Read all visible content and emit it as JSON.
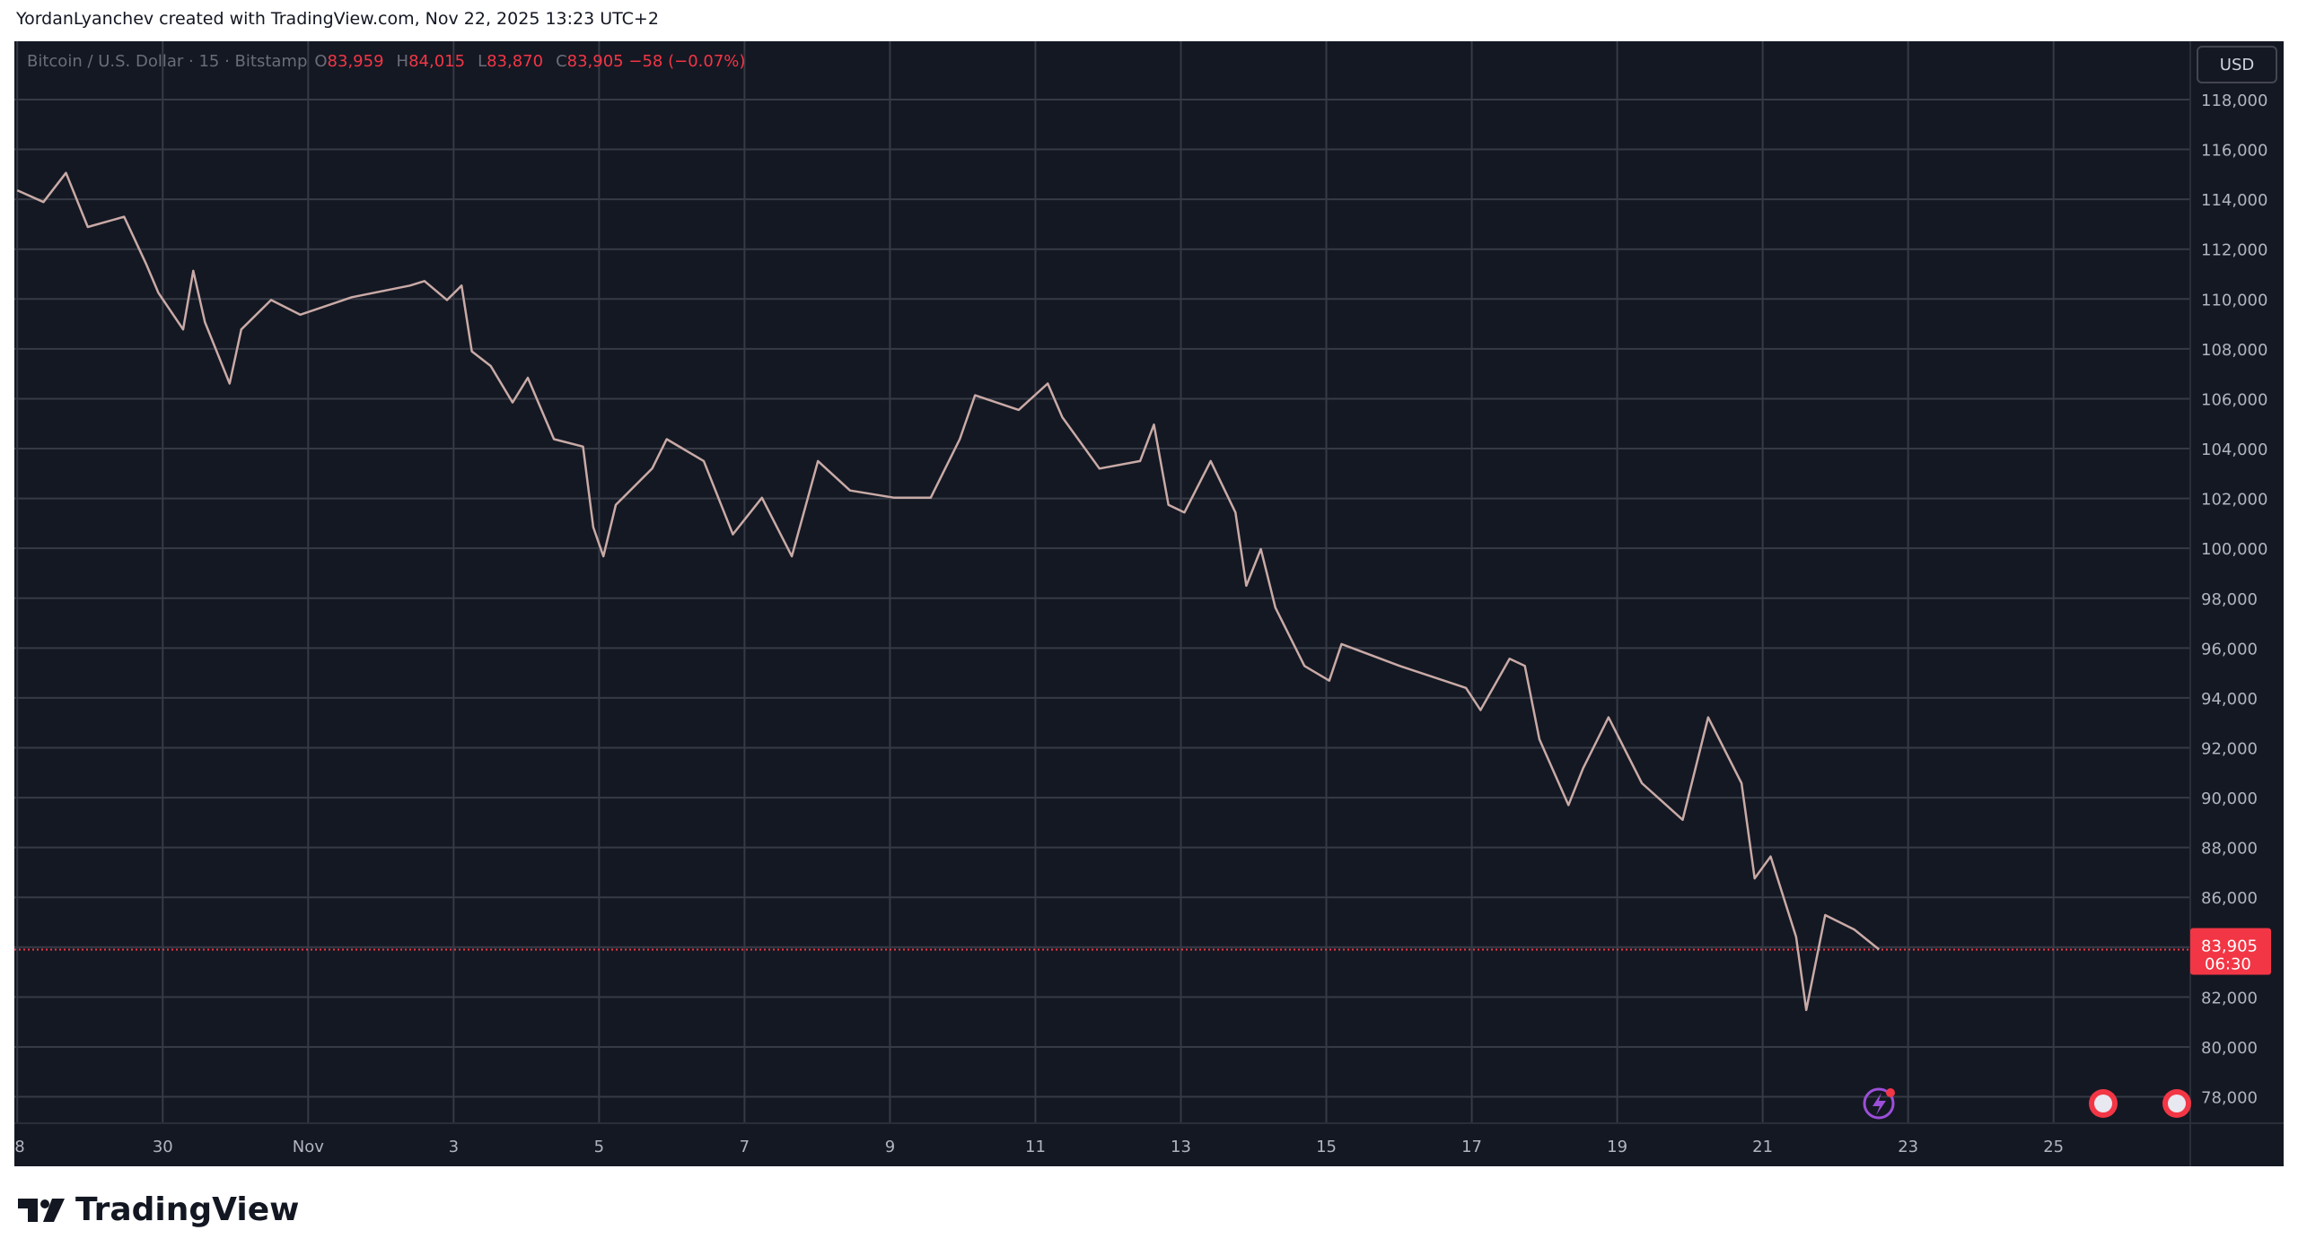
{
  "header": {
    "credit": "YordanLyanchev created with TradingView.com, Nov 22, 2025 13:23 UTC+2"
  },
  "chart_data": {
    "type": "line",
    "title": "Bitcoin / U.S. Dollar · 15 · Bitstamp",
    "ohlc": [
      {
        "key": "O",
        "value": "83,959"
      },
      {
        "key": "H",
        "value": "84,015"
      },
      {
        "key": "L",
        "value": "83,870"
      },
      {
        "key": "C",
        "value": "83,905"
      }
    ],
    "change": "−58 (−0.07%)",
    "currency": "USD",
    "color": "#c9aaa6",
    "x": [
      0,
      0.36,
      0.67,
      0.97,
      1.47,
      1.77,
      1.94,
      2.28,
      2.42,
      2.58,
      2.92,
      3.08,
      3.49,
      3.89,
      4.6,
      5.4,
      5.6,
      5.91,
      6.11,
      6.25,
      6.51,
      6.81,
      7.02,
      7.38,
      7.78,
      7.92,
      8.06,
      8.23,
      8.73,
      8.93,
      9.44,
      9.84,
      10.24,
      10.65,
      11.01,
      11.45,
      12.06,
      12.56,
      12.96,
      13.17,
      13.77,
      14.17,
      14.37,
      14.88,
      15.44,
      15.63,
      15.83,
      16.05,
      16.41,
      16.75,
      16.9,
      17.1,
      17.3,
      17.7,
      18.04,
      18.21,
      19.01,
      19.92,
      20.12,
      20.52,
      20.73,
      20.93,
      21.33,
      21.53,
      21.88,
      22.34,
      22.9,
      23.25,
      23.71,
      23.89,
      24.11,
      24.46,
      24.6,
      24.86,
      25.26,
      25.6
    ],
    "values": [
      114360,
      113890,
      115060,
      112890,
      113300,
      111420,
      110250,
      108780,
      111130,
      109070,
      106610,
      108780,
      109960,
      109370,
      110070,
      110540,
      110720,
      109960,
      110540,
      107900,
      107310,
      105850,
      106840,
      104380,
      104080,
      100850,
      99680,
      101740,
      103200,
      104380,
      103500,
      100560,
      102030,
      99680,
      103500,
      102320,
      102030,
      102030,
      104380,
      106140,
      105550,
      106610,
      105260,
      103200,
      103500,
      104960,
      101740,
      101440,
      103500,
      101440,
      98500,
      99970,
      97620,
      95280,
      94690,
      96160,
      95280,
      94400,
      93510,
      95570,
      95280,
      92340,
      89700,
      91170,
      93220,
      90580,
      89110,
      93220,
      90580,
      86760,
      87640,
      84410,
      81480,
      85290,
      84710,
      83905
    ],
    "last_price": {
      "value": 83905,
      "label": "83,905"
    },
    "countdown": "06:30",
    "xlim": [
      -0.04,
      29.88
    ],
    "xticks": [
      {
        "value": 0,
        "label": "8"
      },
      {
        "value": 2,
        "label": "30"
      },
      {
        "value": 4,
        "label": "Nov"
      },
      {
        "value": 6,
        "label": "3"
      },
      {
        "value": 8,
        "label": "5"
      },
      {
        "value": 10,
        "label": "7"
      },
      {
        "value": 12,
        "label": "9"
      },
      {
        "value": 14,
        "label": "11"
      },
      {
        "value": 16,
        "label": "13"
      },
      {
        "value": 18,
        "label": "15"
      },
      {
        "value": 20,
        "label": "17"
      },
      {
        "value": 22,
        "label": "19"
      },
      {
        "value": 24,
        "label": "21"
      },
      {
        "value": 26,
        "label": "23"
      },
      {
        "value": 28,
        "label": "25"
      }
    ],
    "ylim": [
      76940,
      120230
    ],
    "yticks": [
      {
        "value": 78000,
        "label": "78,000"
      },
      {
        "value": 80000,
        "label": "80,000"
      },
      {
        "value": 82000,
        "label": "82,000"
      },
      {
        "value": 84000,
        "label": "84,000"
      },
      {
        "value": 86000,
        "label": "86,000"
      },
      {
        "value": 88000,
        "label": "88,000"
      },
      {
        "value": 90000,
        "label": "90,000"
      },
      {
        "value": 92000,
        "label": "92,000"
      },
      {
        "value": 94000,
        "label": "94,000"
      },
      {
        "value": 96000,
        "label": "96,000"
      },
      {
        "value": 98000,
        "label": "98,000"
      },
      {
        "value": 100000,
        "label": "100,000"
      },
      {
        "value": 102000,
        "label": "102,000"
      },
      {
        "value": 104000,
        "label": "104,000"
      },
      {
        "value": 106000,
        "label": "106,000"
      },
      {
        "value": 108000,
        "label": "108,000"
      },
      {
        "value": 110000,
        "label": "110,000"
      },
      {
        "value": 112000,
        "label": "112,000"
      },
      {
        "value": 114000,
        "label": "114,000"
      },
      {
        "value": 116000,
        "label": "116,000"
      },
      {
        "value": 118000,
        "label": "118,000"
      }
    ],
    "grid": true
  },
  "footer": {
    "logo": "TradingView"
  }
}
